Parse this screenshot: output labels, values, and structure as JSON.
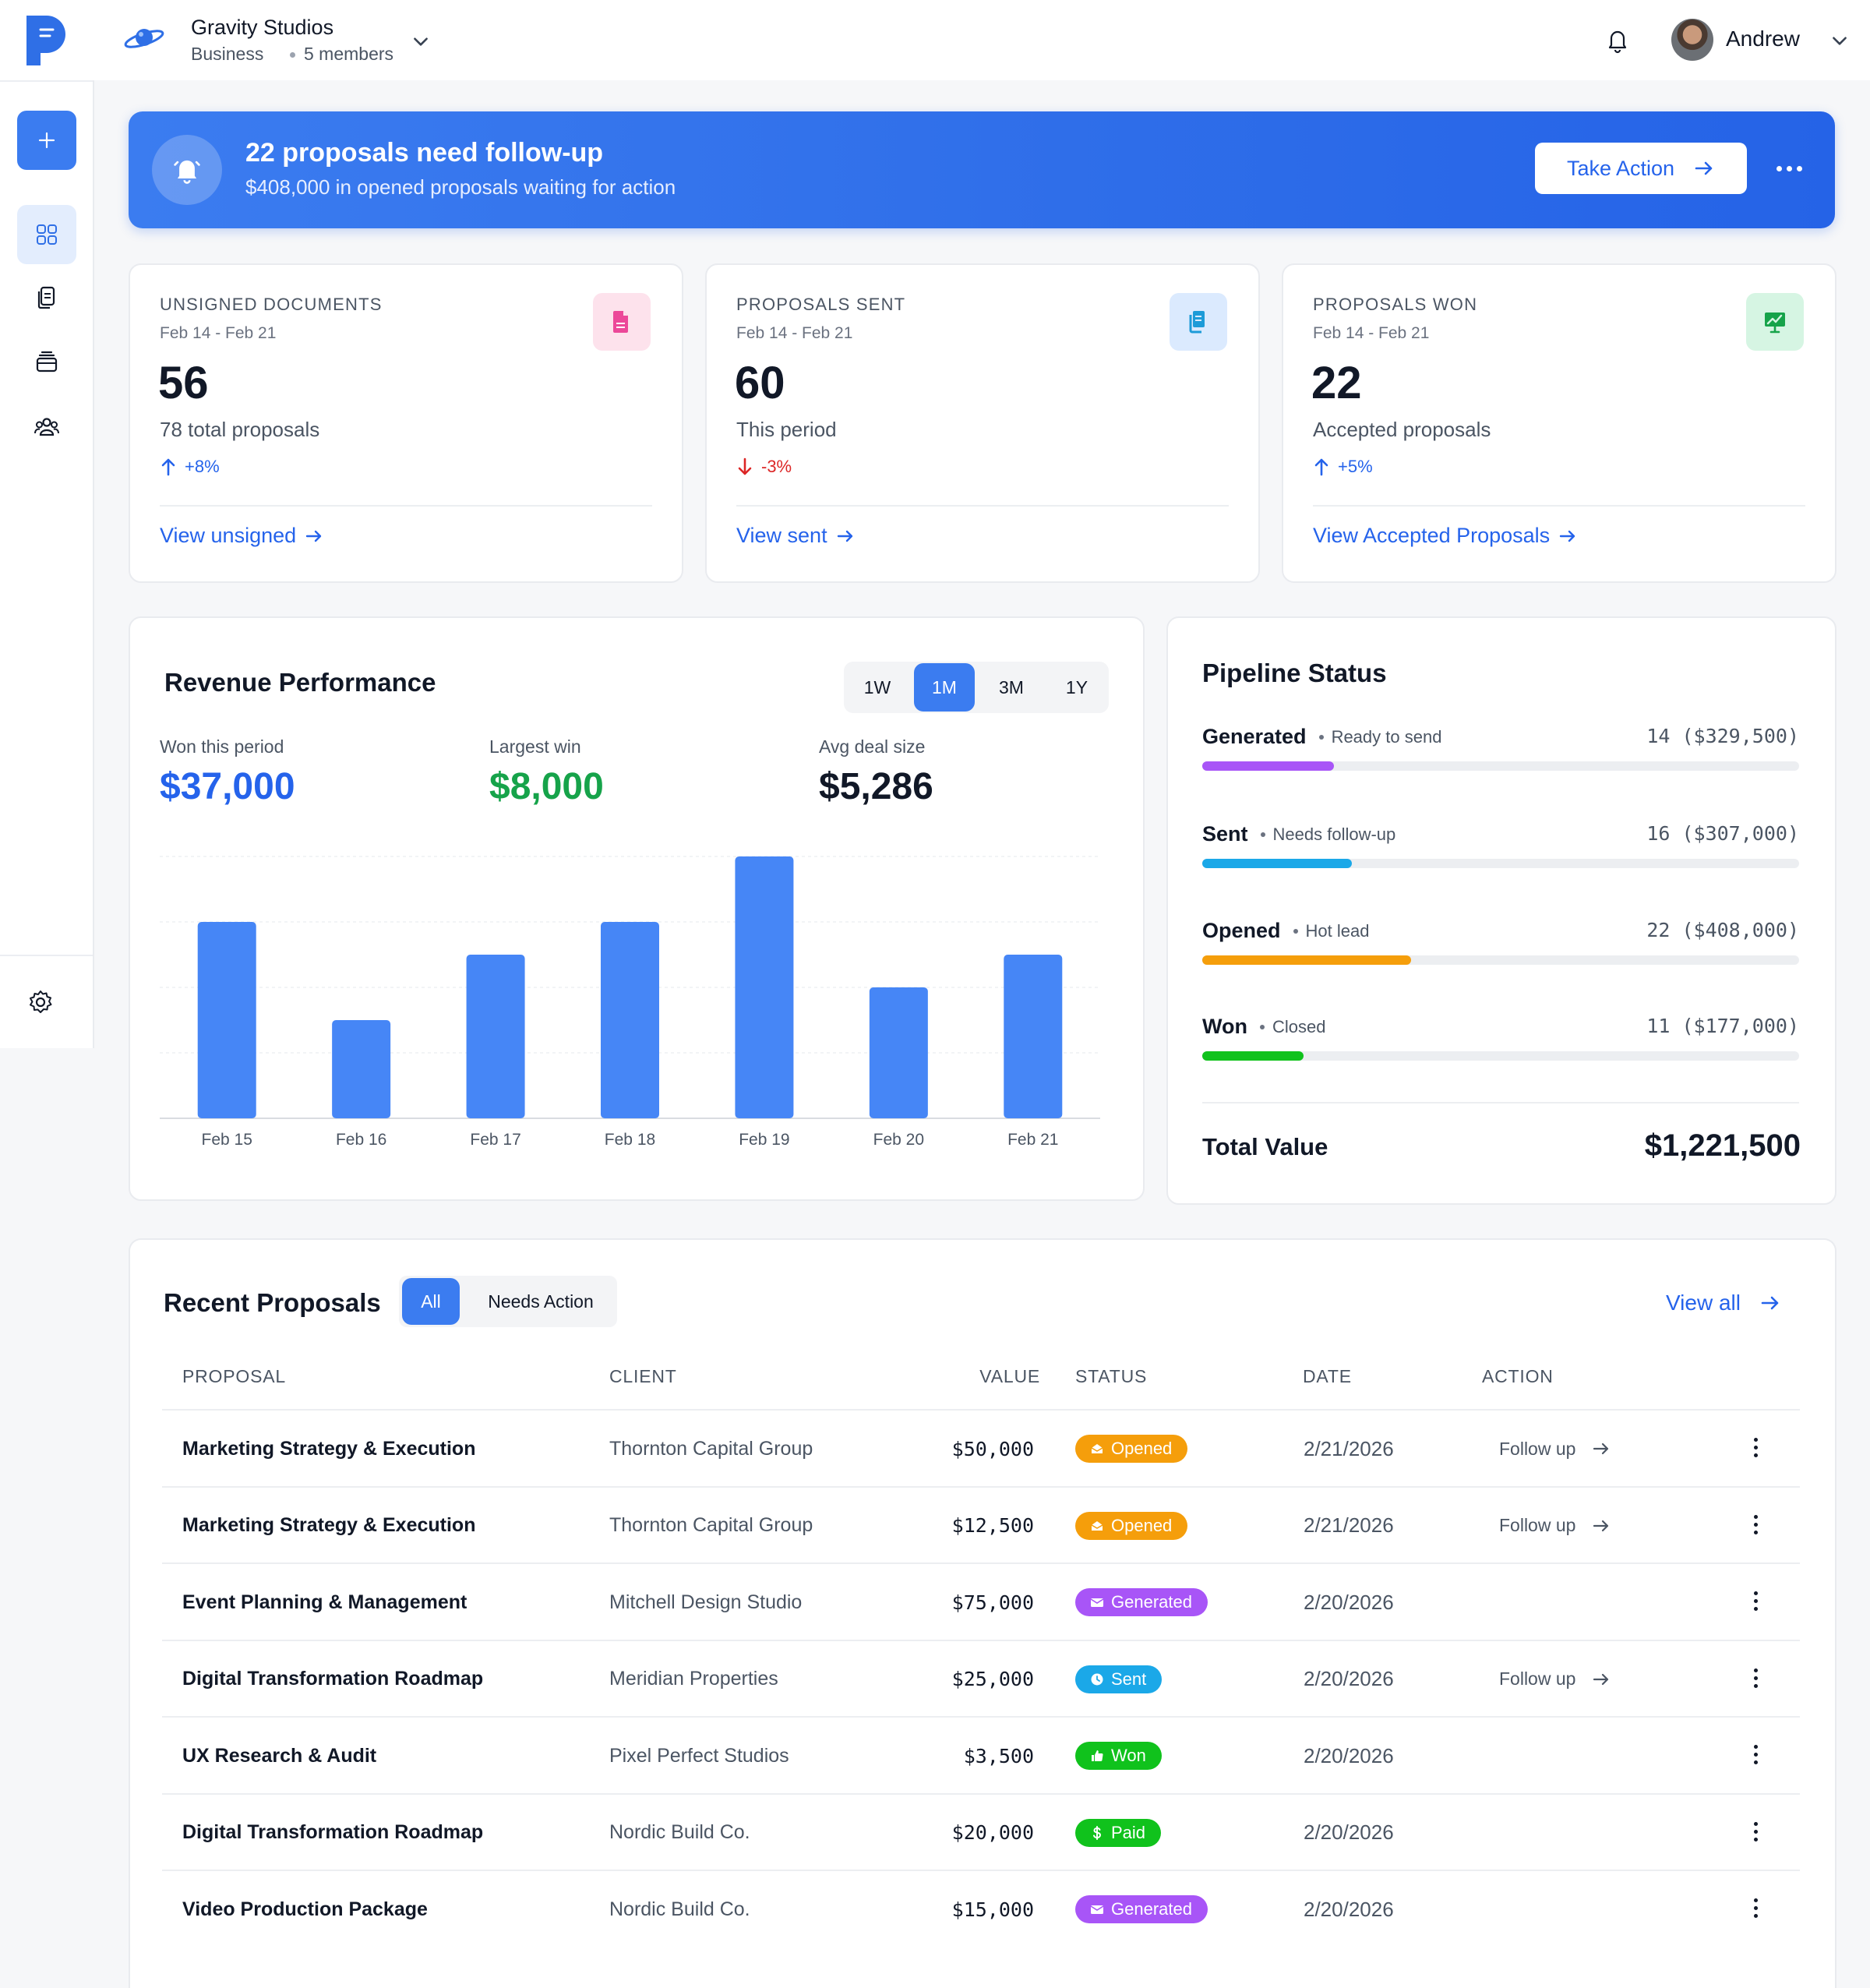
{
  "header": {
    "workspace_name": "Gravity Studios",
    "workspace_plan": "Business",
    "workspace_members": "5 members",
    "user_name": "Andrew"
  },
  "banner": {
    "title": "22 proposals need follow-up",
    "subtitle": "$408,000 in opened proposals waiting for action",
    "action_label": "Take Action"
  },
  "stats": [
    {
      "label": "UNSIGNED DOCUMENTS",
      "date_range": "Feb 14 - Feb 21",
      "value": "56",
      "sub": "78 total proposals",
      "change": "+8%",
      "change_dir": "up",
      "link": "View unsigned",
      "icon": "document-icon",
      "tile_color": "#fde2ec",
      "icon_color": "#ec4899"
    },
    {
      "label": "PROPOSALS SENT",
      "date_range": "Feb 14 - Feb 21",
      "value": "60",
      "sub": "This period",
      "change": "-3%",
      "change_dir": "down",
      "link": "View sent",
      "icon": "copy-documents-icon",
      "tile_color": "#dbeafe",
      "icon_color": "#1d9bd8"
    },
    {
      "label": "PROPOSALS WON",
      "date_range": "Feb 14 - Feb 21",
      "value": "22",
      "sub": "Accepted proposals",
      "change": "+5%",
      "change_dir": "up",
      "link": "View Accepted Proposals",
      "icon": "presentation-chart-icon",
      "tile_color": "#d6f5e3",
      "icon_color": "#16a34a"
    }
  ],
  "revenue": {
    "title": "Revenue Performance",
    "ranges": [
      "1W",
      "1M",
      "3M",
      "1Y"
    ],
    "active_range": "1M",
    "metrics": [
      {
        "label": "Won this period",
        "value": "$37,000",
        "color": "#2563eb"
      },
      {
        "label": "Largest win",
        "value": "$8,000",
        "color": "#16a34a"
      },
      {
        "label": "Avg deal size",
        "value": "$5,286",
        "color": "#111827"
      }
    ]
  },
  "chart_data": {
    "type": "bar",
    "categories": [
      "Feb 15",
      "Feb 16",
      "Feb 17",
      "Feb 18",
      "Feb 19",
      "Feb 20",
      "Feb 21"
    ],
    "values": [
      6,
      3,
      5,
      6,
      8,
      4,
      5
    ],
    "ylim": [
      0,
      8
    ],
    "grid": true,
    "bar_color": "#4686f6",
    "title": "",
    "xlabel": "",
    "ylabel": ""
  },
  "pipeline": {
    "title": "Pipeline Status",
    "stages": [
      {
        "name": "Generated",
        "note": "Ready to send",
        "count_value": "14 ($329,500)",
        "fraction": 0.22,
        "color": "#a855f7"
      },
      {
        "name": "Sent",
        "note": "Needs follow-up",
        "count_value": "16 ($307,000)",
        "fraction": 0.25,
        "color": "#1ba8e8"
      },
      {
        "name": "Opened",
        "note": "Hot lead",
        "count_value": "22 ($408,000)",
        "fraction": 0.35,
        "color": "#f59e0b"
      },
      {
        "name": "Won",
        "note": "Closed",
        "count_value": "11 ($177,000)",
        "fraction": 0.17,
        "color": "#10c21c"
      }
    ],
    "total_label": "Total Value",
    "total_value": "$1,221,500"
  },
  "proposals": {
    "title": "Recent Proposals",
    "tabs": [
      "All",
      "Needs Action"
    ],
    "active_tab": "All",
    "view_all": "View all",
    "columns": [
      "PROPOSAL",
      "CLIENT",
      "VALUE",
      "STATUS",
      "DATE",
      "ACTION"
    ],
    "rows": [
      {
        "proposal": "Marketing Strategy & Execution",
        "client": "Thornton Capital Group",
        "value": "$50,000",
        "status": "Opened",
        "date": "2/21/2026",
        "action": "Follow up"
      },
      {
        "proposal": "Marketing Strategy & Execution",
        "client": "Thornton Capital Group",
        "value": "$12,500",
        "status": "Opened",
        "date": "2/21/2026",
        "action": "Follow up"
      },
      {
        "proposal": "Event Planning & Management",
        "client": "Mitchell Design Studio",
        "value": "$75,000",
        "status": "Generated",
        "date": "2/20/2026",
        "action": ""
      },
      {
        "proposal": "Digital Transformation Roadmap",
        "client": "Meridian Properties",
        "value": "$25,000",
        "status": "Sent",
        "date": "2/20/2026",
        "action": "Follow up"
      },
      {
        "proposal": "UX Research & Audit",
        "client": "Pixel Perfect Studios",
        "value": "$3,500",
        "status": "Won",
        "date": "2/20/2026",
        "action": ""
      },
      {
        "proposal": "Digital Transformation Roadmap",
        "client": "Nordic Build Co.",
        "value": "$20,000",
        "status": "Paid",
        "date": "2/20/2026",
        "action": ""
      },
      {
        "proposal": "Video Production Package",
        "client": "Nordic Build Co.",
        "value": "$15,000",
        "status": "Generated",
        "date": "2/20/2026",
        "action": ""
      }
    ],
    "status_colors": {
      "Opened": "#f59e0b",
      "Generated": "#a855f7",
      "Sent": "#1ba8e8",
      "Won": "#10c21c",
      "Paid": "#10c21c"
    }
  }
}
